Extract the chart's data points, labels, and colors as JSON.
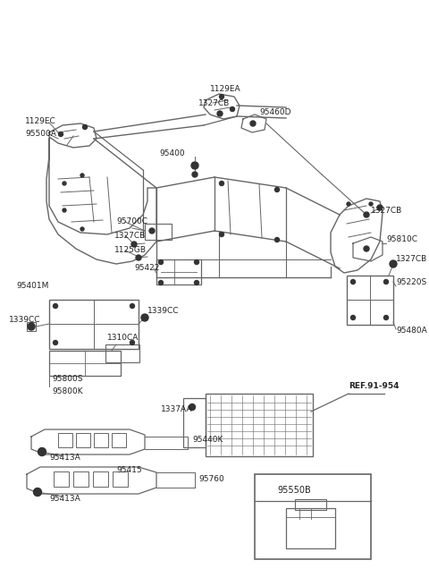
{
  "bg_color": "#ffffff",
  "lc": "#666666",
  "tc": "#222222",
  "figsize": [
    4.8,
    6.55
  ],
  "dpi": 100,
  "xlim": [
    0,
    480
  ],
  "ylim": [
    0,
    655
  ]
}
